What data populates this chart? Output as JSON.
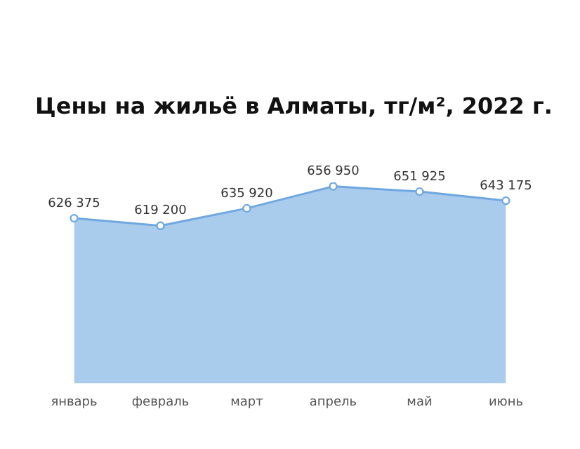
{
  "chart_data": {
    "type": "area",
    "title": "Цены на жильё в Алматы, тг/м², 2022 г.",
    "categories": [
      "январь",
      "февраль",
      "март",
      "апрель",
      "май",
      "июнь"
    ],
    "series": [
      {
        "color": "#6fa8e0",
        "values": [
          626375,
          619200,
          635920,
          656950,
          651925,
          643175
        ],
        "value_labels": [
          "626 375",
          "619 200",
          "635 920",
          "656 950",
          "651 925",
          "643 175"
        ]
      }
    ],
    "marker": "circle",
    "grid": false,
    "legend": false
  }
}
